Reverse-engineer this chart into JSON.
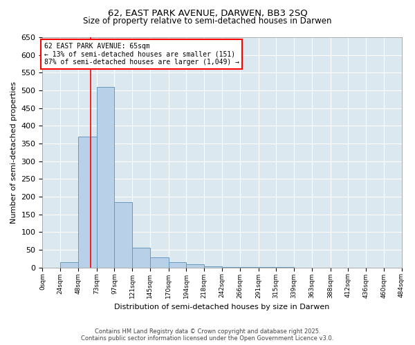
{
  "title1": "62, EAST PARK AVENUE, DARWEN, BB3 2SQ",
  "title2": "Size of property relative to semi-detached houses in Darwen",
  "xlabel": "Distribution of semi-detached houses by size in Darwen",
  "ylabel": "Number of semi-detached properties",
  "bin_edges": [
    0,
    24,
    48,
    73,
    97,
    121,
    145,
    170,
    194,
    218,
    242,
    266,
    291,
    315,
    339,
    363,
    388,
    412,
    436,
    460,
    484
  ],
  "bin_labels": [
    "0sqm",
    "24sqm",
    "48sqm",
    "73sqm",
    "97sqm",
    "121sqm",
    "145sqm",
    "170sqm",
    "194sqm",
    "218sqm",
    "242sqm",
    "266sqm",
    "291sqm",
    "315sqm",
    "339sqm",
    "363sqm",
    "388sqm",
    "412sqm",
    "436sqm",
    "460sqm",
    "484sqm"
  ],
  "counts": [
    0,
    15,
    370,
    510,
    185,
    55,
    28,
    15,
    10,
    3,
    2,
    1,
    1,
    1,
    0,
    0,
    0,
    0,
    0,
    0
  ],
  "property_size": 65,
  "bar_color": "#b8d0e8",
  "bar_edge_color": "#6699bb",
  "line_color": "red",
  "ylim": [
    0,
    650
  ],
  "yticks": [
    0,
    50,
    100,
    150,
    200,
    250,
    300,
    350,
    400,
    450,
    500,
    550,
    600,
    650
  ],
  "annotation_title": "62 EAST PARK AVENUE: 65sqm",
  "annotation_line1": "← 13% of semi-detached houses are smaller (151)",
  "annotation_line2": "87% of semi-detached houses are larger (1,049) →",
  "footer1": "Contains HM Land Registry data © Crown copyright and database right 2025.",
  "footer2": "Contains public sector information licensed under the Open Government Licence v3.0.",
  "bg_color": "#dce8f0",
  "plot_bg_color": "#dce8f0",
  "fig_bg_color": "#ffffff"
}
